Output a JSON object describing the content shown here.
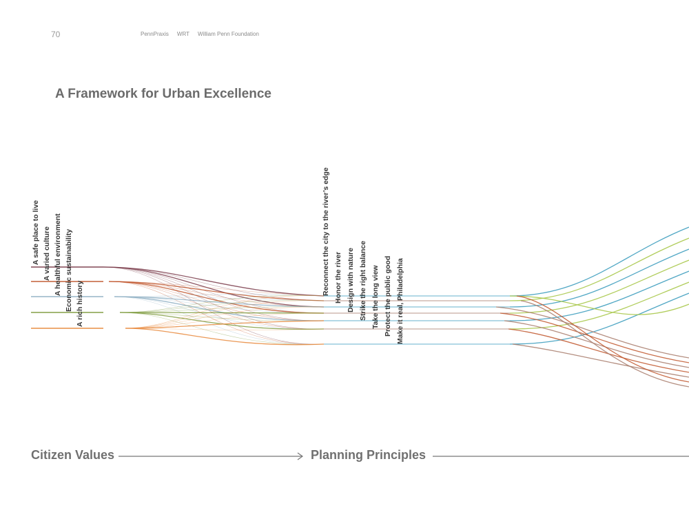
{
  "header": {
    "page_number": "70",
    "links": [
      "PennPraxis",
      "WRT",
      "William Penn Foundation"
    ]
  },
  "title": "A Framework for Urban Excellence",
  "citizen_values": [
    "A safe place to live",
    "A varied culture",
    "A healthful environment",
    "Economic sustainability",
    "A rich history"
  ],
  "planning_principles": [
    "Reconnect the city to the river’s edge",
    "Honor the river",
    "Design with nature",
    "Strike the right balance",
    "Take the long view",
    "Protect the public good",
    "Make it real, Philadelphia"
  ],
  "footer": {
    "left_label": "Citizen Values",
    "right_label": "Planning Principles"
  },
  "colors": {
    "maroon": "#7a3b4a",
    "rust": "#c0552a",
    "steel_blue": "#8fb0c4",
    "olive": "#7d9a3c",
    "orange": "#e8873a",
    "teal": "#3f9fbf",
    "lime": "#a8c84a",
    "brown": "#a77a6a",
    "arrow": "#777777"
  }
}
